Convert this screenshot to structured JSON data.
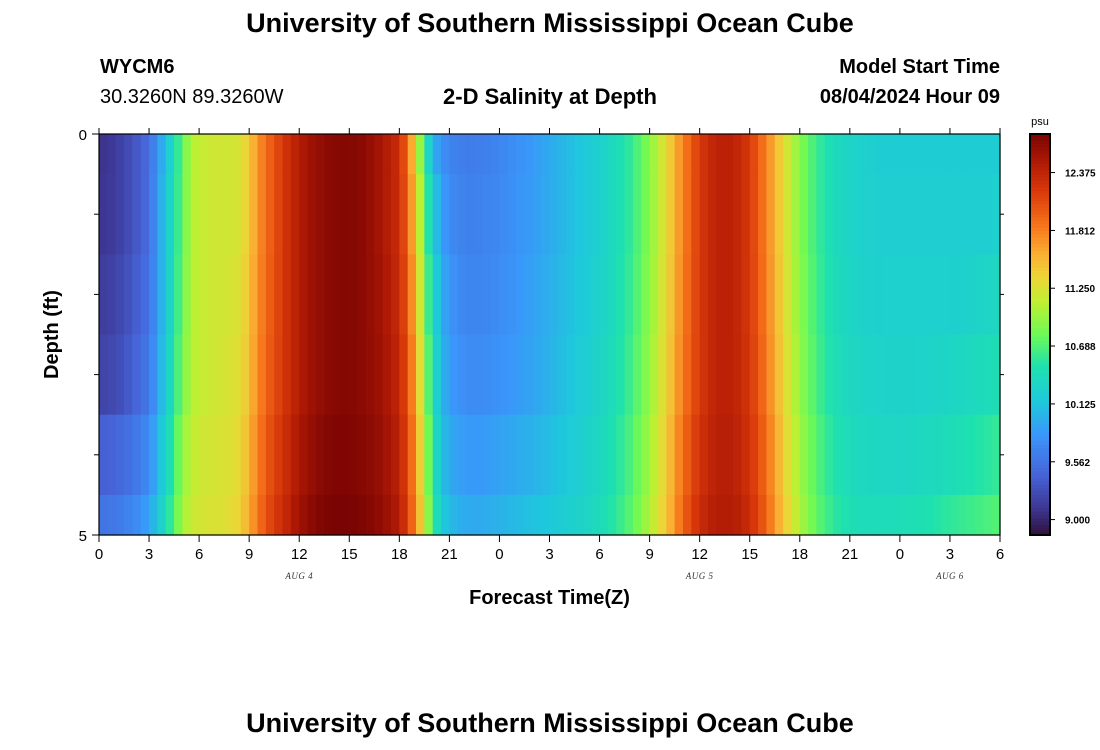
{
  "header": {
    "title": "University of Southern Mississippi Ocean Cube",
    "station_id": "WYCM6",
    "coordinates": "30.3260N  89.3260W",
    "plot_title": "2-D Salinity at Depth",
    "model_start_label": "Model Start Time",
    "model_start_value": "08/04/2024 Hour 09"
  },
  "footer": {
    "title": "University of Southern Mississippi Ocean Cube"
  },
  "chart_data": {
    "type": "heatmap",
    "title": "2-D Salinity at Depth",
    "xlabel": "Forecast Time(Z)",
    "ylabel": "Depth (ft)",
    "x_tick_labels": [
      "0",
      "3",
      "6",
      "9",
      "12",
      "15",
      "18",
      "21",
      "0",
      "3",
      "6",
      "9",
      "12",
      "15",
      "18",
      "21",
      "0",
      "3",
      "6"
    ],
    "x_range_hours": [
      0,
      54
    ],
    "date_labels": [
      {
        "text": "AUG 4",
        "hour": 12
      },
      {
        "text": "AUG 5",
        "hour": 36
      },
      {
        "text": "AUG 6",
        "hour": 51
      }
    ],
    "y_tick_labels": [
      {
        "value": 0,
        "label": "0"
      },
      {
        "value": 5,
        "label": "5"
      }
    ],
    "y_range": [
      0,
      5
    ],
    "y_minor_ticks": [
      1,
      2,
      3,
      4
    ],
    "depth_levels": [
      0.25,
      1.0,
      2.0,
      3.0,
      4.0,
      4.75
    ],
    "colorbar": {
      "unit": "psu",
      "min": 8.85,
      "max": 12.75,
      "tick_labels": [
        "12.375",
        "11.812",
        "11.250",
        "10.688",
        "10.125",
        "9.562",
        "9.000"
      ]
    },
    "profile": {
      "hours": [
        0,
        1,
        2,
        3,
        3.5,
        4,
        4.5,
        5,
        5.5,
        6,
        7,
        8,
        8.5,
        9,
        9.5,
        10,
        11,
        12,
        13,
        14,
        15,
        16,
        17,
        18,
        18.5,
        19,
        19.5,
        20,
        20.5,
        21,
        22,
        23,
        24,
        25,
        26,
        27,
        28,
        29,
        30,
        31,
        32,
        33,
        34,
        35,
        36,
        37,
        38,
        39,
        40,
        41,
        42,
        43,
        44,
        45,
        46,
        47,
        48,
        49,
        50,
        51,
        52,
        53,
        54
      ],
      "depth_rows": [
        [
          9.08,
          9.15,
          9.3,
          9.5,
          9.8,
          10.1,
          10.4,
          10.75,
          11.05,
          11.15,
          11.2,
          11.2,
          11.25,
          11.45,
          11.7,
          11.9,
          12.2,
          12.45,
          12.6,
          12.68,
          12.7,
          12.65,
          12.5,
          12.3,
          11.9,
          11.3,
          10.6,
          10.0,
          9.8,
          9.7,
          9.62,
          9.65,
          9.7,
          9.78,
          9.85,
          9.95,
          10.05,
          10.15,
          10.25,
          10.4,
          10.6,
          10.9,
          11.3,
          11.8,
          12.2,
          12.4,
          12.4,
          12.2,
          11.8,
          11.3,
          10.9,
          10.6,
          10.4,
          10.3,
          10.25,
          10.2,
          10.2,
          10.2,
          10.2,
          10.2,
          10.2,
          10.2,
          10.2
        ],
        [
          9.1,
          9.15,
          9.3,
          9.5,
          9.85,
          10.15,
          10.45,
          10.75,
          11.05,
          11.15,
          11.2,
          11.2,
          11.25,
          11.45,
          11.7,
          11.9,
          12.2,
          12.45,
          12.6,
          12.68,
          12.7,
          12.65,
          12.5,
          12.3,
          11.95,
          11.4,
          10.8,
          10.2,
          9.9,
          9.75,
          9.65,
          9.68,
          9.72,
          9.8,
          9.87,
          9.95,
          10.05,
          10.15,
          10.25,
          10.4,
          10.6,
          10.9,
          11.3,
          11.8,
          12.2,
          12.4,
          12.4,
          12.2,
          11.8,
          11.3,
          10.9,
          10.6,
          10.4,
          10.3,
          10.25,
          10.22,
          10.22,
          10.22,
          10.22,
          10.22,
          10.22,
          10.22,
          10.25
        ],
        [
          9.15,
          9.2,
          9.35,
          9.55,
          9.85,
          10.15,
          10.45,
          10.8,
          11.05,
          11.15,
          11.2,
          11.22,
          11.28,
          11.48,
          11.72,
          11.92,
          12.2,
          12.45,
          12.6,
          12.68,
          12.7,
          12.65,
          12.52,
          12.32,
          12.0,
          11.5,
          10.9,
          10.3,
          10.0,
          9.8,
          9.7,
          9.7,
          9.75,
          9.82,
          9.9,
          9.98,
          10.07,
          10.17,
          10.27,
          10.42,
          10.62,
          10.92,
          11.32,
          11.82,
          12.2,
          12.4,
          12.4,
          12.2,
          11.82,
          11.32,
          10.92,
          10.62,
          10.42,
          10.32,
          10.27,
          10.25,
          10.25,
          10.25,
          10.25,
          10.25,
          10.27,
          10.3,
          10.35
        ],
        [
          9.2,
          9.25,
          9.4,
          9.6,
          9.9,
          10.2,
          10.5,
          10.85,
          11.05,
          11.15,
          11.2,
          11.25,
          11.3,
          11.5,
          11.75,
          11.95,
          12.2,
          12.45,
          12.6,
          12.68,
          12.7,
          12.65,
          12.55,
          12.35,
          12.05,
          11.6,
          11.0,
          10.4,
          10.05,
          9.85,
          9.75,
          9.75,
          9.8,
          9.85,
          9.92,
          10.0,
          10.1,
          10.2,
          10.3,
          10.45,
          10.65,
          10.95,
          11.35,
          11.85,
          12.2,
          12.4,
          12.4,
          12.22,
          11.85,
          11.35,
          10.95,
          10.65,
          10.45,
          10.35,
          10.3,
          10.28,
          10.28,
          10.28,
          10.3,
          10.32,
          10.35,
          10.4,
          10.45
        ],
        [
          9.4,
          9.45,
          9.55,
          9.75,
          10.0,
          10.3,
          10.6,
          10.95,
          11.1,
          11.2,
          11.22,
          11.28,
          11.35,
          11.55,
          11.8,
          12.0,
          12.25,
          12.5,
          12.65,
          12.72,
          12.72,
          12.68,
          12.58,
          12.4,
          12.1,
          11.7,
          11.1,
          10.5,
          10.1,
          9.95,
          9.85,
          9.85,
          9.9,
          9.95,
          10.0,
          10.07,
          10.15,
          10.25,
          10.35,
          10.5,
          10.7,
          11.0,
          11.4,
          11.9,
          12.25,
          12.42,
          12.42,
          12.25,
          11.9,
          11.4,
          11.0,
          10.7,
          10.5,
          10.4,
          10.35,
          10.33,
          10.33,
          10.35,
          10.38,
          10.42,
          10.47,
          10.52,
          10.58
        ],
        [
          9.55,
          9.6,
          9.7,
          9.9,
          10.15,
          10.4,
          10.7,
          11.0,
          11.15,
          11.22,
          11.25,
          11.3,
          11.4,
          11.6,
          11.85,
          12.05,
          12.3,
          12.55,
          12.7,
          12.75,
          12.75,
          12.72,
          12.62,
          12.45,
          12.15,
          11.75,
          11.2,
          10.6,
          10.2,
          10.05,
          9.95,
          9.95,
          10.0,
          10.05,
          10.1,
          10.15,
          10.22,
          10.3,
          10.4,
          10.55,
          10.75,
          11.05,
          11.45,
          11.95,
          12.3,
          12.45,
          12.45,
          12.3,
          11.95,
          11.45,
          11.05,
          10.75,
          10.55,
          10.45,
          10.4,
          10.4,
          10.42,
          10.45,
          10.5,
          10.55,
          10.6,
          10.65,
          10.7
        ]
      ]
    }
  }
}
